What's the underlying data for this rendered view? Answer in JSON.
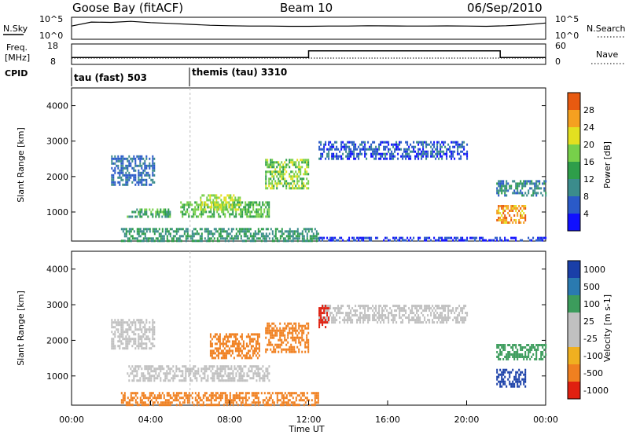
{
  "header": {
    "station": "Goose Bay (fitACF)",
    "beam": "Beam 10",
    "date": "06/Sep/2010"
  },
  "panels": {
    "noise": {
      "left_label": "N.Sky",
      "left_ticks": [
        "10^5",
        "10^0"
      ],
      "right_ticks": [
        "10^5",
        "10^0"
      ],
      "right_label": "N.Search"
    },
    "freq": {
      "left_label_1": "Freq.",
      "left_label_2": "[MHz]",
      "left_ticks": [
        "18",
        "8"
      ],
      "right_ticks": [
        "60",
        "0"
      ],
      "right_label": "Nave"
    },
    "cpid": {
      "label": "CPID",
      "modes": [
        "tau (fast) 503",
        "themis (tau) 3310"
      ]
    }
  },
  "chart_data": [
    {
      "type": "line",
      "panel": "noise",
      "series": [
        {
          "name": "N.Sky",
          "x": [
            0,
            1,
            2,
            3,
            4,
            5,
            6,
            7,
            8,
            9,
            10,
            11,
            12,
            13,
            14,
            15,
            16,
            17,
            18,
            19,
            20,
            21,
            22,
            23,
            24
          ],
          "y": [
            1000,
            8000,
            7000,
            12000,
            6000,
            4000,
            2500,
            1500,
            1200,
            1000,
            1000,
            900,
            900,
            1000,
            1000,
            1200,
            1100,
            1000,
            1000,
            1100,
            1000,
            900,
            1200,
            2000,
            5000
          ]
        }
      ],
      "ylim": [
        1,
        100000
      ]
    },
    {
      "type": "line",
      "panel": "freq",
      "series": [
        {
          "name": "Nave",
          "x": [
            0,
            12,
            12,
            21.7,
            21.7,
            24
          ],
          "y": [
            20,
            20,
            40,
            40,
            20,
            20
          ]
        }
      ],
      "ylim": [
        0,
        60
      ]
    },
    {
      "type": "heatmap",
      "panel": "power",
      "xlabel": "",
      "ylabel": "Slant Range [km]",
      "colorbar_label": "Power [dB]",
      "colorbar_ticks": [
        "4",
        "8",
        "12",
        "16",
        "20",
        "24",
        "28"
      ],
      "y_ticks": [
        "1000",
        "2000",
        "3000",
        "4000"
      ],
      "xlim": [
        0,
        24
      ],
      "ylim": [
        180,
        4500
      ],
      "regions": [
        {
          "x": [
            2.0,
            4.2
          ],
          "y": [
            1800,
            2600
          ],
          "value": 8
        },
        {
          "x": [
            2.8,
            5.0
          ],
          "y": [
            850,
            1100
          ],
          "value": 14
        },
        {
          "x": [
            5.5,
            10.0
          ],
          "y": [
            900,
            1300
          ],
          "value": 16
        },
        {
          "x": [
            6.5,
            8.5
          ],
          "y": [
            1100,
            1500
          ],
          "value": 20
        },
        {
          "x": [
            9.8,
            12.0
          ],
          "y": [
            1700,
            2500
          ],
          "value": 18
        },
        {
          "x": [
            12.5,
            20.0
          ],
          "y": [
            2500,
            3000
          ],
          "value": 6
        },
        {
          "x": [
            21.5,
            23.0
          ],
          "y": [
            700,
            1200
          ],
          "value": 26
        },
        {
          "x": [
            21.5,
            24.0
          ],
          "y": [
            1500,
            1900
          ],
          "value": 10
        },
        {
          "x": [
            2.5,
            12.5
          ],
          "y": [
            200,
            550
          ],
          "value": 12
        },
        {
          "x": [
            12.5,
            24.0
          ],
          "y": [
            180,
            300
          ],
          "value": 4
        }
      ]
    },
    {
      "type": "heatmap",
      "panel": "velocity",
      "xlabel": "Time UT",
      "ylabel": "Slant Range [km]",
      "colorbar_label": "Velocity [m s-1]",
      "colorbar_ticks": [
        "1000",
        "500",
        "100",
        "25",
        "-25",
        "-100",
        "-500",
        "-1000"
      ],
      "x_ticks": [
        "00:00",
        "04:00",
        "08:00",
        "12:00",
        "16:00",
        "20:00",
        "00:00"
      ],
      "y_ticks": [
        "1000",
        "2000",
        "3000",
        "4000"
      ],
      "xlim": [
        0,
        24
      ],
      "ylim": [
        180,
        4500
      ],
      "regions": [
        {
          "x": [
            2.0,
            4.2
          ],
          "y": [
            1800,
            2600
          ],
          "value": 0
        },
        {
          "x": [
            2.8,
            10.0
          ],
          "y": [
            850,
            1300
          ],
          "value": 0
        },
        {
          "x": [
            7.0,
            9.5
          ],
          "y": [
            1500,
            2200
          ],
          "value": -300
        },
        {
          "x": [
            9.8,
            12.0
          ],
          "y": [
            1700,
            2500
          ],
          "value": -150
        },
        {
          "x": [
            12.5,
            20.0
          ],
          "y": [
            2500,
            3000
          ],
          "value": 0
        },
        {
          "x": [
            21.5,
            23.0
          ],
          "y": [
            700,
            1200
          ],
          "value": 600
        },
        {
          "x": [
            21.5,
            24.0
          ],
          "y": [
            1500,
            1900
          ],
          "value": 50
        },
        {
          "x": [
            2.5,
            12.5
          ],
          "y": [
            200,
            550
          ],
          "value": -200
        },
        {
          "x": [
            12.5,
            13.0
          ],
          "y": [
            2400,
            3000
          ],
          "value": -800
        }
      ]
    }
  ]
}
